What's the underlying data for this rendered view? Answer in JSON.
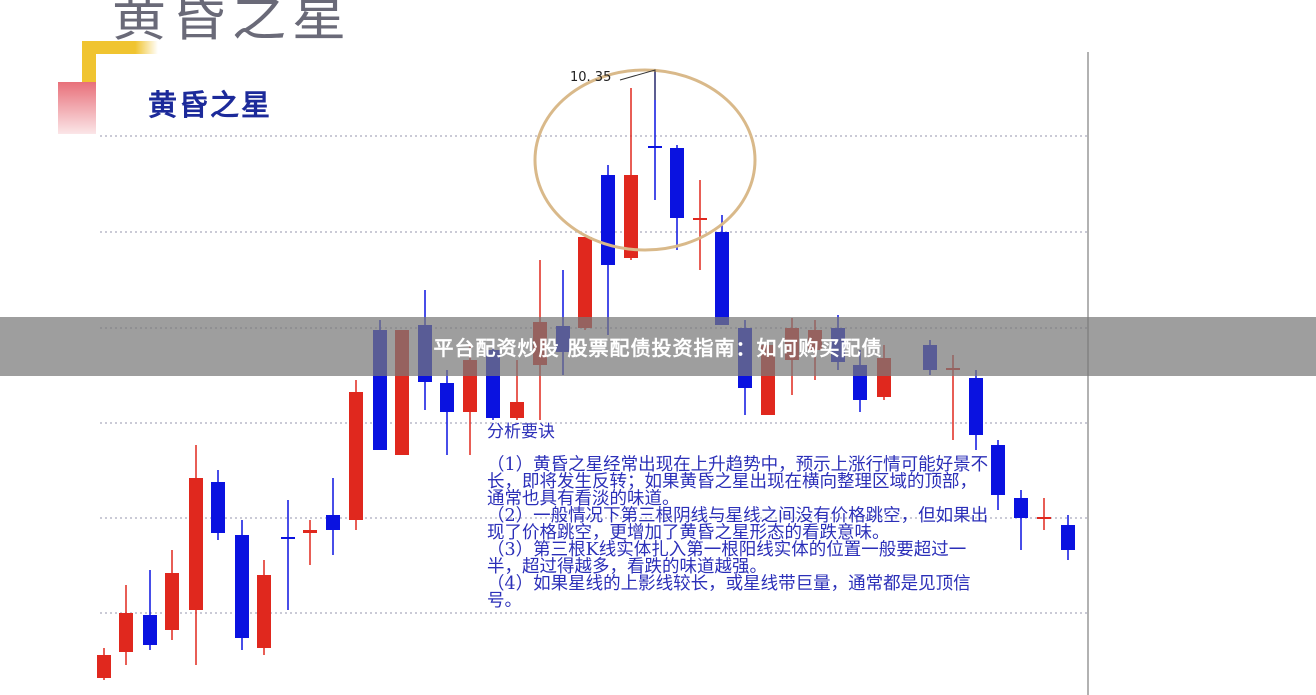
{
  "slide": {
    "title": "黄昏之星",
    "subtitle": "黄昏之星",
    "price_label": "10. 35"
  },
  "analysis": {
    "heading": "分析要诀",
    "points": [
      "（1）黄昏之星经常出现在上升趋势中，预示上涨行情可能好景不长，即将发生反转；如果黄昏之星出现在横向整理区域的顶部，通常也具有看淡的味道。",
      "（2）一般情况下第三根阴线与星线之间没有价格跳空，但如果出现了价格跳空，更增加了黄昏之星形态的看跌意味。",
      "（3）第三根K线实体扎入第一根阳线实体的位置一般要超过一半，超过得越多，看跌的味道越强。",
      "（4）如果星线的上影线较长，或星线带巨量，通常都是见顶信号。"
    ]
  },
  "banner": {
    "text": "平台配资炒股 股票配债投资指南：如何购买配债"
  },
  "colors": {
    "up_candle": "#e0281e",
    "down_candle": "#0a12e0",
    "text_blue": "#2b2fb8",
    "highlight_circle": "#d9b98a",
    "banner_bg": "#787878"
  }
}
